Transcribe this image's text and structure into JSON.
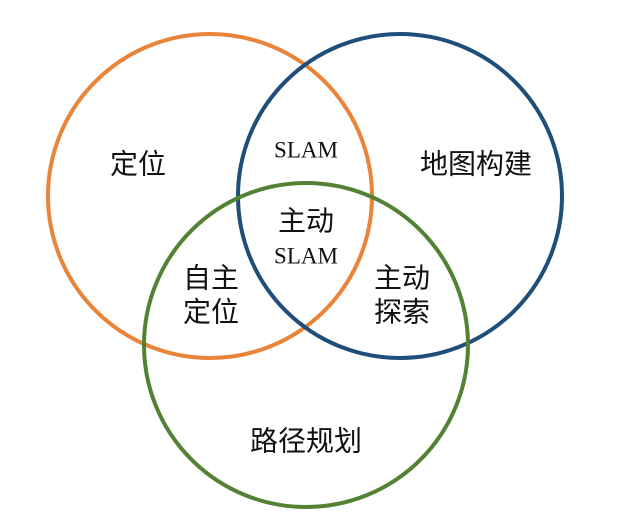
{
  "colors": {
    "localization": "#E8853A",
    "mapping": "#1F4E79",
    "path_planning": "#548235",
    "text": "#111111",
    "background": "#FFFFFF"
  },
  "sets": {
    "localization": "定位",
    "mapping": "地图构建",
    "path_planning": "路径规划"
  },
  "intersections": {
    "localization_mapping": "SLAM",
    "localization_planning": [
      "自主",
      "定位"
    ],
    "mapping_planning": [
      "主动",
      "探索"
    ],
    "all_three": [
      "主动",
      "SLAM"
    ]
  }
}
